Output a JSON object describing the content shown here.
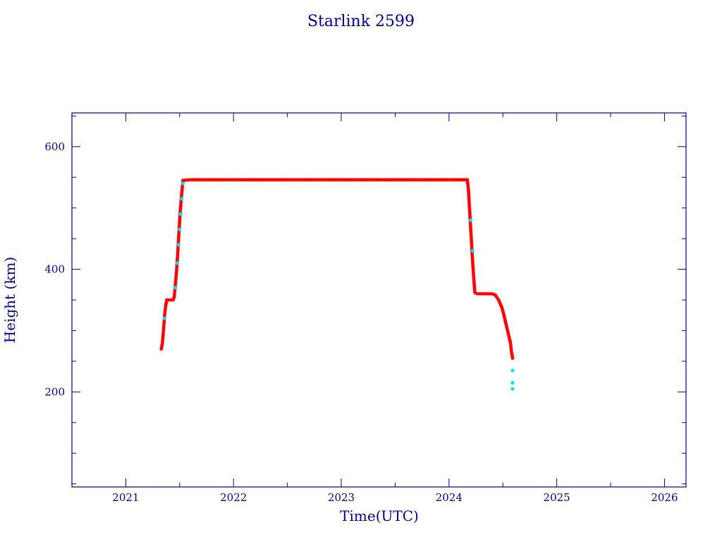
{
  "chart_data": {
    "type": "scatter",
    "title": "Starlink 2599",
    "xlabel": "Time(UTC)",
    "ylabel": "Height (km)",
    "xlim": [
      2020.5,
      2026.2
    ],
    "ylim": [
      45,
      655
    ],
    "xticks": [
      2021,
      2022,
      2023,
      2024,
      2025,
      2026
    ],
    "xtick_labels": [
      "2021",
      "2022",
      "2023",
      "2024",
      "2025",
      "2026"
    ],
    "yticks": [
      200,
      400,
      600
    ],
    "ytick_labels": [
      "200",
      "400",
      "600"
    ],
    "grid": false,
    "series": [
      {
        "values": [
          [
            2021.33,
            270
          ],
          [
            2021.34,
            280
          ],
          [
            2021.35,
            300
          ],
          [
            2021.36,
            325
          ],
          [
            2021.37,
            340
          ],
          [
            2021.38,
            350
          ],
          [
            2021.4,
            350
          ],
          [
            2021.42,
            350
          ],
          [
            2021.44,
            350
          ],
          [
            2021.45,
            355
          ],
          [
            2021.46,
            375
          ],
          [
            2021.47,
            395
          ],
          [
            2021.48,
            420
          ],
          [
            2021.49,
            450
          ],
          [
            2021.5,
            480
          ],
          [
            2021.51,
            505
          ],
          [
            2021.52,
            525
          ],
          [
            2021.53,
            545
          ],
          [
            2021.6,
            546
          ],
          [
            2021.8,
            546
          ],
          [
            2022.0,
            546
          ],
          [
            2022.2,
            546
          ],
          [
            2022.4,
            546
          ],
          [
            2022.6,
            546
          ],
          [
            2022.8,
            546
          ],
          [
            2023.0,
            546
          ],
          [
            2023.2,
            546
          ],
          [
            2023.4,
            546
          ],
          [
            2023.6,
            546
          ],
          [
            2023.8,
            546
          ],
          [
            2024.0,
            546
          ],
          [
            2024.17,
            546
          ],
          [
            2024.18,
            530
          ],
          [
            2024.19,
            500
          ],
          [
            2024.2,
            470
          ],
          [
            2024.21,
            440
          ],
          [
            2024.22,
            410
          ],
          [
            2024.23,
            385
          ],
          [
            2024.24,
            362
          ],
          [
            2024.26,
            360
          ],
          [
            2024.3,
            360
          ],
          [
            2024.35,
            360
          ],
          [
            2024.4,
            360
          ],
          [
            2024.43,
            358
          ],
          [
            2024.46,
            350
          ],
          [
            2024.49,
            338
          ],
          [
            2024.51,
            325
          ],
          [
            2024.53,
            310
          ],
          [
            2024.55,
            295
          ],
          [
            2024.57,
            280
          ],
          [
            2024.58,
            265
          ],
          [
            2024.59,
            255
          ]
        ],
        "color": "#ff0000",
        "marker": "asterisk"
      },
      {
        "values": [
          [
            2021.36,
            320
          ],
          [
            2021.46,
            370
          ],
          [
            2021.48,
            410
          ],
          [
            2021.49,
            440
          ],
          [
            2021.5,
            465
          ],
          [
            2021.51,
            490
          ],
          [
            2021.52,
            515
          ],
          [
            2021.53,
            540
          ],
          [
            2024.2,
            480
          ],
          [
            2024.22,
            430
          ],
          [
            2024.59,
            235
          ],
          [
            2024.59,
            215
          ],
          [
            2024.59,
            205
          ]
        ],
        "color": "#00e5ee",
        "marker": "dot"
      }
    ],
    "colors": {
      "text": "#00008b",
      "axis": "#00008b",
      "background": "#ffffff"
    }
  }
}
